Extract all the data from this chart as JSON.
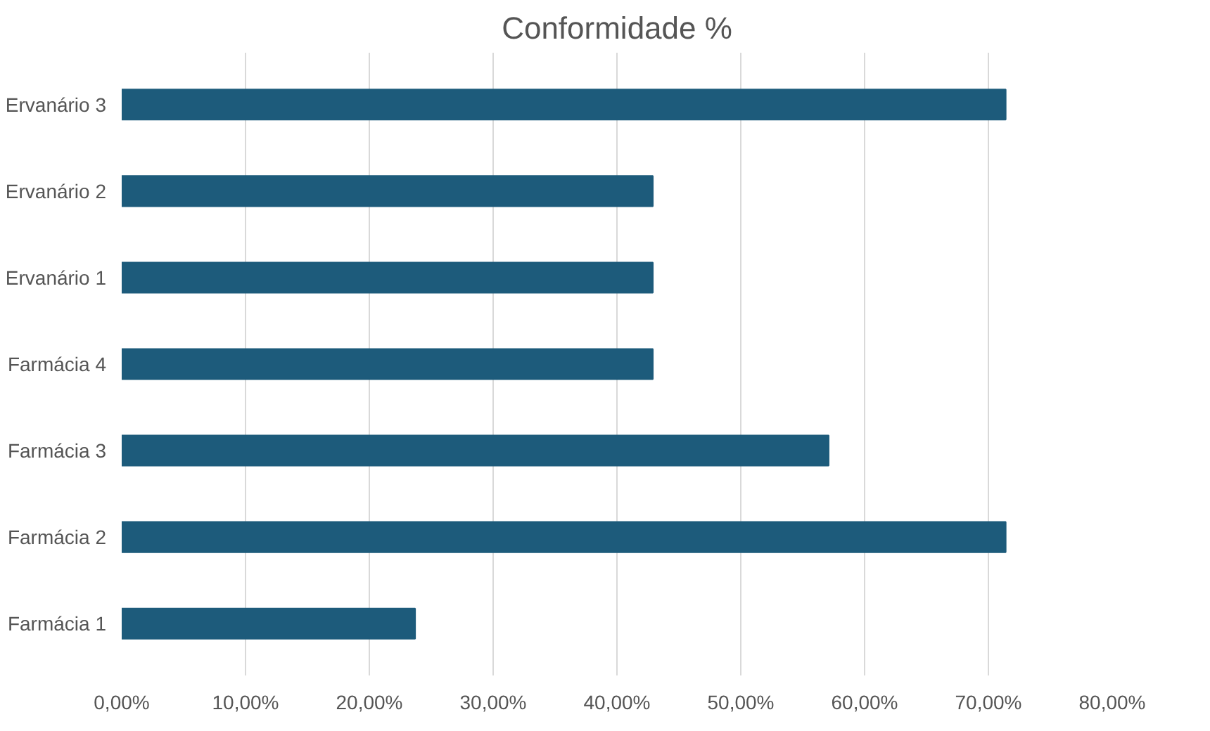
{
  "chart_data": {
    "type": "bar",
    "orientation": "horizontal",
    "title": "Conformidade %",
    "categories": [
      "Ervanário 3",
      "Ervanário 2",
      "Ervanário 1",
      "Farmácia 4",
      "Farmácia 3",
      "Farmácia 2",
      "Farmácia 1"
    ],
    "values": [
      71.4,
      42.9,
      42.9,
      42.9,
      57.1,
      71.4,
      23.7
    ],
    "color": "#1d5b7b",
    "xlim": [
      0,
      80
    ],
    "xticks": [
      {
        "value": 0,
        "label": "0,00%"
      },
      {
        "value": 10,
        "label": "10,00%"
      },
      {
        "value": 20,
        "label": "20,00%"
      },
      {
        "value": 30,
        "label": "30,00%"
      },
      {
        "value": 40,
        "label": "40,00%"
      },
      {
        "value": 50,
        "label": "50,00%"
      },
      {
        "value": 60,
        "label": "60,00%"
      },
      {
        "value": 70,
        "label": "70,00%"
      },
      {
        "value": 80,
        "label": "80,00%"
      }
    ],
    "grid": "x"
  }
}
